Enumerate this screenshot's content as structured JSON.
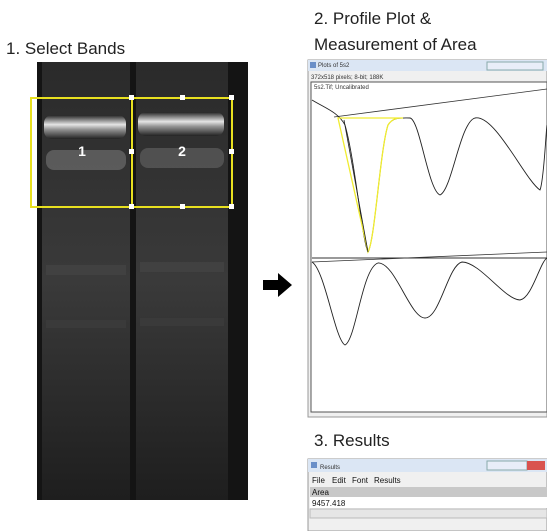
{
  "headings": {
    "step1": "1. Select Bands",
    "step2_line1": "2. Profile Plot &",
    "step2_line2": "Measurement of Area",
    "step3": "3. Results"
  },
  "gel": {
    "lane_labels": [
      "1",
      "2"
    ]
  },
  "plot_window": {
    "title": "Plots of 5s2",
    "info": "372x518 pixels; 8-bit; 188K",
    "subtitle": "5s2.Tif; Uncalibrated"
  },
  "results_window": {
    "title": "Results",
    "menu": [
      "File",
      "Edit",
      "Font",
      "Results"
    ],
    "column": "Area",
    "value": "9457.418"
  }
}
